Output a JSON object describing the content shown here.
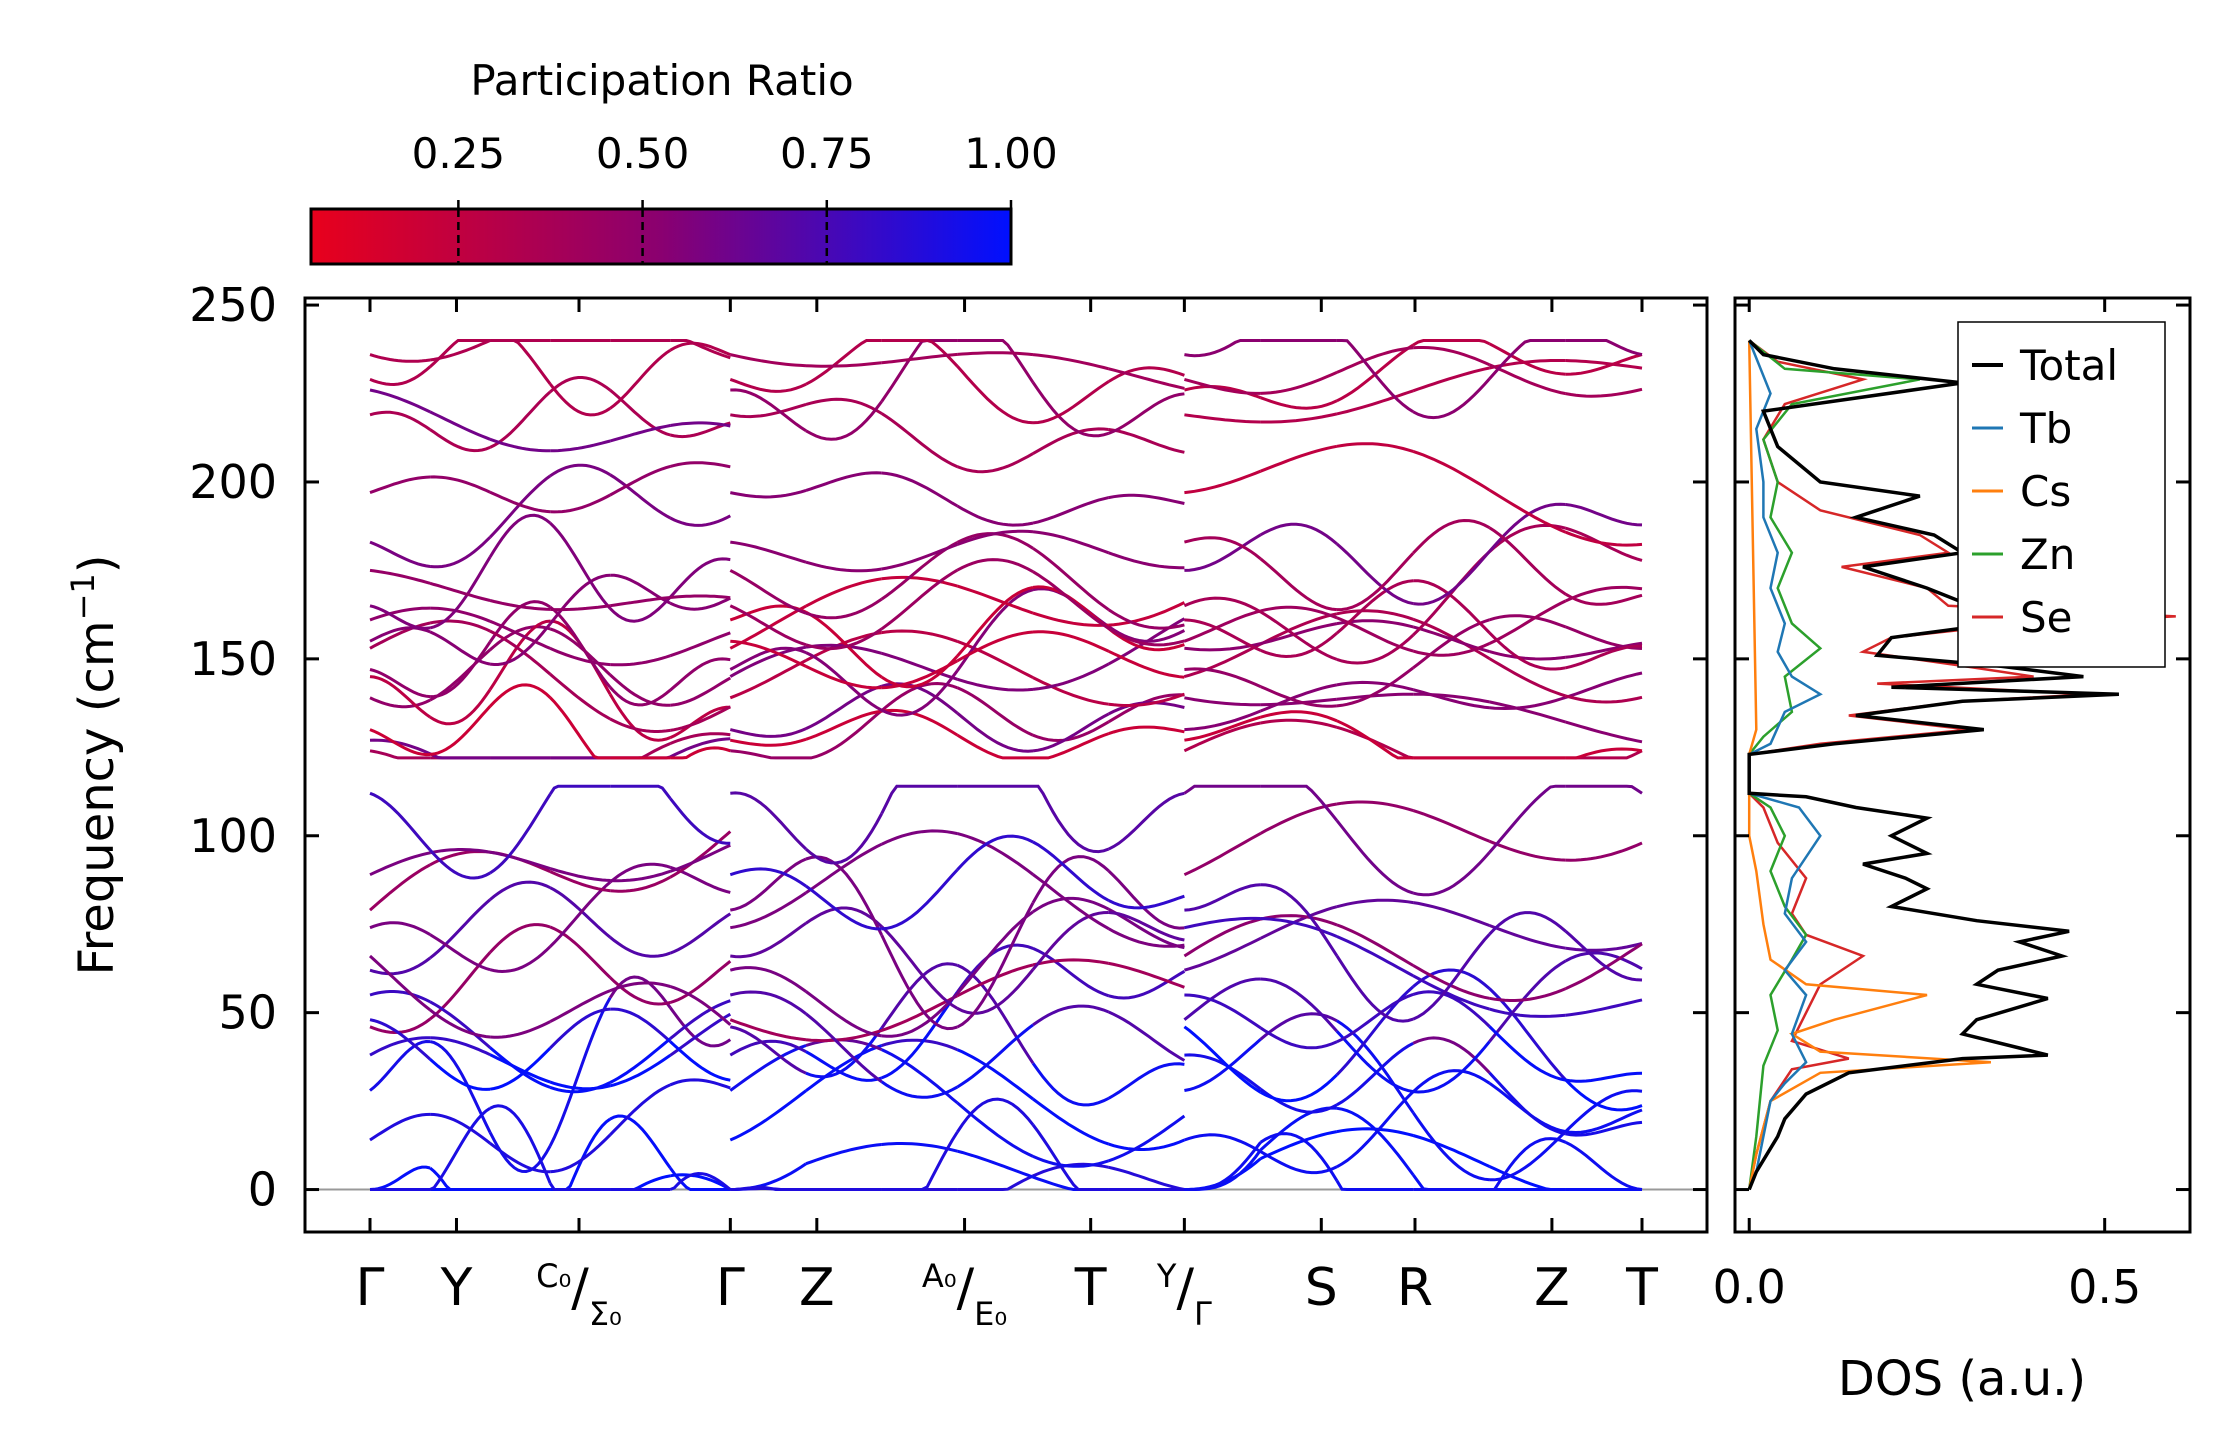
{
  "chart_data": [
    {
      "type": "line",
      "title": "",
      "xlabel": "",
      "ylabel": "Frequency (cm⁻¹)",
      "ylabel_unit_sup": "−1",
      "ylim": [
        -12,
        252
      ],
      "yticks": [
        0,
        50,
        100,
        150,
        200,
        250
      ],
      "segments": [
        {
          "x_range": [
            0.0,
            1.0
          ],
          "kpoints": [
            {
              "pos": 0.0,
              "label": "Γ"
            },
            {
              "pos": 0.24,
              "label": "Y"
            },
            {
              "pos": 0.58,
              "label": "C₀/Σ₀",
              "top": "C₀",
              "bottom": "Σ₀"
            },
            {
              "pos": 1.0,
              "label": "Γ"
            }
          ]
        },
        {
          "x_range": [
            1.0,
            2.26
          ],
          "kpoints": [
            {
              "pos": 1.24,
              "label": "Z"
            },
            {
              "pos": 1.65,
              "label": "A₀/E₀",
              "top": "A₀",
              "bottom": "E₀"
            },
            {
              "pos": 2.0,
              "label": "T"
            },
            {
              "pos": 2.26,
              "label": "Y/Γ",
              "top": "Y",
              "bottom": "Γ"
            }
          ]
        },
        {
          "x_range": [
            2.26,
            3.53
          ],
          "kpoints": [
            {
              "pos": 2.64,
              "label": "S"
            },
            {
              "pos": 2.9,
              "label": "R"
            },
            {
              "pos": 3.28,
              "label": "Z"
            },
            {
              "pos": 3.53,
              "label": "T"
            }
          ]
        }
      ],
      "band_groups": {
        "acoustic_endpoints": [
          0,
          14,
          28,
          38,
          46,
          48,
          55,
          62,
          66,
          74,
          79,
          89,
          112
        ],
        "optical_endpoints": [
          124,
          127,
          130,
          139,
          145,
          147,
          153,
          155,
          161,
          165,
          175,
          183,
          197,
          219,
          226,
          229,
          236
        ]
      },
      "colorbar": {
        "label": "Participation Ratio",
        "range": [
          0.05,
          1.0
        ],
        "ticks": [
          0.25,
          0.5,
          0.75,
          1.0
        ],
        "tick_labels": [
          "0.25",
          "0.50",
          "0.75",
          "1.00"
        ],
        "color_low": "#e8001c",
        "color_mid": "#8a0070",
        "color_high": "#0010ff"
      }
    },
    {
      "type": "line",
      "xlabel": "DOS (a.u.)",
      "xlim": [
        -0.02,
        0.62
      ],
      "xticks": [
        0.0,
        0.5
      ],
      "xtick_labels": [
        "0.0",
        "0.5"
      ],
      "ylim": [
        -12,
        252
      ],
      "legend_position": "top-right",
      "series": [
        {
          "name": "Total",
          "color": "#000000",
          "points": [
            [
              0.0,
              0
            ],
            [
              0.01,
              5
            ],
            [
              0.04,
              15
            ],
            [
              0.05,
              20
            ],
            [
              0.08,
              27
            ],
            [
              0.14,
              33
            ],
            [
              0.3,
              37
            ],
            [
              0.42,
              38
            ],
            [
              0.38,
              40
            ],
            [
              0.3,
              44
            ],
            [
              0.32,
              48
            ],
            [
              0.42,
              54
            ],
            [
              0.32,
              58
            ],
            [
              0.35,
              62
            ],
            [
              0.44,
              66
            ],
            [
              0.38,
              70
            ],
            [
              0.45,
              73
            ],
            [
              0.32,
              76
            ],
            [
              0.2,
              80
            ],
            [
              0.25,
              85
            ],
            [
              0.22,
              88
            ],
            [
              0.16,
              92
            ],
            [
              0.25,
              95
            ],
            [
              0.2,
              100
            ],
            [
              0.25,
              105
            ],
            [
              0.15,
              108
            ],
            [
              0.08,
              111
            ],
            [
              0.0,
              112
            ],
            [
              0.0,
              123
            ],
            [
              0.12,
              126
            ],
            [
              0.33,
              130
            ],
            [
              0.15,
              134
            ],
            [
              0.3,
              138
            ],
            [
              0.52,
              140
            ],
            [
              0.2,
              142
            ],
            [
              0.47,
              145
            ],
            [
              0.35,
              148
            ],
            [
              0.18,
              151
            ],
            [
              0.2,
              156
            ],
            [
              0.35,
              160
            ],
            [
              0.58,
              163
            ],
            [
              0.3,
              166
            ],
            [
              0.25,
              170
            ],
            [
              0.16,
              176
            ],
            [
              0.3,
              180
            ],
            [
              0.26,
              185
            ],
            [
              0.15,
              190
            ],
            [
              0.24,
              196
            ],
            [
              0.1,
              200
            ],
            [
              0.04,
              210
            ],
            [
              0.02,
              220
            ],
            [
              0.3,
              228
            ],
            [
              0.12,
              232
            ],
            [
              0.02,
              236
            ],
            [
              0.0,
              240
            ]
          ]
        },
        {
          "name": "Tb",
          "color": "#1f77b4",
          "points": [
            [
              0.0,
              0
            ],
            [
              0.01,
              5
            ],
            [
              0.02,
              15
            ],
            [
              0.03,
              25
            ],
            [
              0.05,
              30
            ],
            [
              0.08,
              36
            ],
            [
              0.06,
              44
            ],
            [
              0.08,
              55
            ],
            [
              0.05,
              62
            ],
            [
              0.08,
              70
            ],
            [
              0.05,
              78
            ],
            [
              0.06,
              88
            ],
            [
              0.1,
              100
            ],
            [
              0.07,
              108
            ],
            [
              0.0,
              112
            ],
            [
              0.0,
              123
            ],
            [
              0.03,
              126
            ],
            [
              0.05,
              135
            ],
            [
              0.1,
              140
            ],
            [
              0.06,
              145
            ],
            [
              0.04,
              152
            ],
            [
              0.05,
              160
            ],
            [
              0.03,
              170
            ],
            [
              0.04,
              180
            ],
            [
              0.02,
              190
            ],
            [
              0.02,
              200
            ],
            [
              0.01,
              215
            ],
            [
              0.03,
              225
            ],
            [
              0.01,
              235
            ],
            [
              0.0,
              240
            ]
          ]
        },
        {
          "name": "Cs",
          "color": "#ff7f0e",
          "points": [
            [
              0.0,
              0
            ],
            [
              0.01,
              10
            ],
            [
              0.03,
              25
            ],
            [
              0.1,
              33
            ],
            [
              0.34,
              36
            ],
            [
              0.1,
              39
            ],
            [
              0.06,
              44
            ],
            [
              0.12,
              48
            ],
            [
              0.25,
              55
            ],
            [
              0.08,
              58
            ],
            [
              0.03,
              65
            ],
            [
              0.02,
              75
            ],
            [
              0.01,
              90
            ],
            [
              0.0,
              100
            ],
            [
              0.0,
              123
            ],
            [
              0.01,
              130
            ],
            [
              0.0,
              240
            ]
          ]
        },
        {
          "name": "Zn",
          "color": "#2ca02c",
          "points": [
            [
              0.0,
              0
            ],
            [
              0.01,
              15
            ],
            [
              0.02,
              35
            ],
            [
              0.04,
              45
            ],
            [
              0.03,
              55
            ],
            [
              0.06,
              65
            ],
            [
              0.08,
              72
            ],
            [
              0.05,
              80
            ],
            [
              0.03,
              90
            ],
            [
              0.05,
              100
            ],
            [
              0.03,
              108
            ],
            [
              0.0,
              112
            ],
            [
              0.0,
              123
            ],
            [
              0.02,
              128
            ],
            [
              0.06,
              135
            ],
            [
              0.05,
              145
            ],
            [
              0.1,
              153
            ],
            [
              0.06,
              160
            ],
            [
              0.04,
              170
            ],
            [
              0.06,
              180
            ],
            [
              0.03,
              190
            ],
            [
              0.04,
              200
            ],
            [
              0.02,
              212
            ],
            [
              0.06,
              222
            ],
            [
              0.24,
              229
            ],
            [
              0.05,
              232
            ],
            [
              0.0,
              240
            ]
          ]
        },
        {
          "name": "Se",
          "color": "#d62728",
          "points": [
            [
              0.0,
              0
            ],
            [
              0.01,
              10
            ],
            [
              0.03,
              25
            ],
            [
              0.06,
              34
            ],
            [
              0.14,
              37
            ],
            [
              0.06,
              42
            ],
            [
              0.08,
              50
            ],
            [
              0.1,
              58
            ],
            [
              0.16,
              66
            ],
            [
              0.08,
              72
            ],
            [
              0.06,
              78
            ],
            [
              0.08,
              88
            ],
            [
              0.04,
              98
            ],
            [
              0.02,
              108
            ],
            [
              0.0,
              112
            ],
            [
              0.0,
              123
            ],
            [
              0.1,
              126
            ],
            [
              0.31,
              130
            ],
            [
              0.14,
              134
            ],
            [
              0.3,
              138
            ],
            [
              0.48,
              140
            ],
            [
              0.18,
              143
            ],
            [
              0.4,
              145
            ],
            [
              0.3,
              148
            ],
            [
              0.16,
              152
            ],
            [
              0.2,
              156
            ],
            [
              0.38,
              160
            ],
            [
              0.6,
              162
            ],
            [
              0.28,
              165
            ],
            [
              0.25,
              170
            ],
            [
              0.13,
              176
            ],
            [
              0.28,
              180
            ],
            [
              0.24,
              185
            ],
            [
              0.1,
              192
            ],
            [
              0.04,
              200
            ],
            [
              0.02,
              212
            ],
            [
              0.05,
              222
            ],
            [
              0.16,
              229
            ],
            [
              0.04,
              234
            ],
            [
              0.0,
              240
            ]
          ]
        }
      ]
    }
  ]
}
